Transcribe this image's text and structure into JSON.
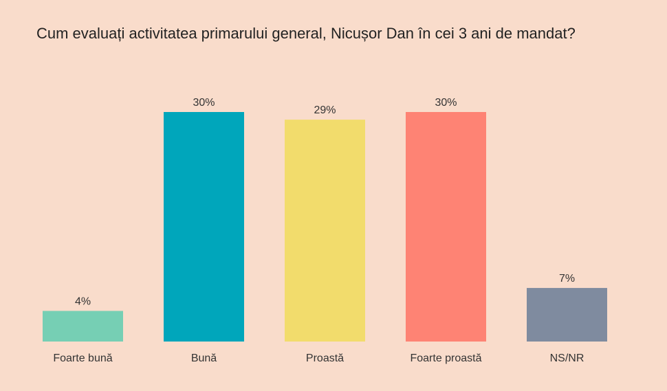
{
  "chart_data": {
    "type": "bar",
    "title": "Cum evaluați activitatea primarului general, Nicușor Dan în cei 3 ani de mandat?",
    "categories": [
      "Foarte bună",
      "Bună",
      "Proastă",
      "Foarte proastă",
      "NS/NR"
    ],
    "values": [
      4,
      30,
      29,
      30,
      7
    ],
    "data_labels": [
      "4%",
      "30%",
      "29%",
      "30%",
      "7%"
    ],
    "colors": [
      "#76cfb4",
      "#00a6bb",
      "#f2dc6c",
      "#fe8374",
      "#7f8b9f"
    ],
    "ylim": [
      0,
      30
    ],
    "grid": false,
    "legend": "none",
    "xlabel": "",
    "ylabel": ""
  }
}
